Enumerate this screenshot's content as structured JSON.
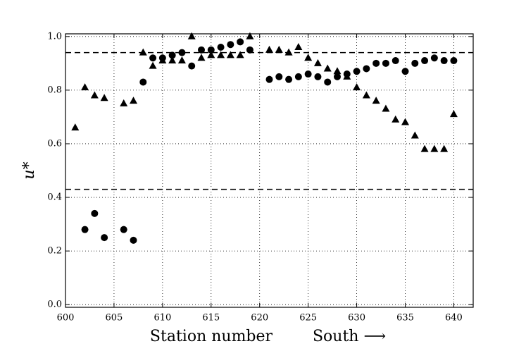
{
  "chart_data": {
    "type": "scatter",
    "xlabel": "Station number",
    "xlabel_note": "South ⟶",
    "ylabel": "u*",
    "xlim": [
      600,
      642
    ],
    "ylim": [
      -0.01,
      1.01
    ],
    "xticks": [
      600,
      605,
      610,
      615,
      620,
      625,
      630,
      635,
      640
    ],
    "yticks": [
      {
        "value": 0,
        "label": "0.0"
      },
      0.2,
      0.4,
      0.6,
      0.8,
      {
        "value": 1,
        "label": "1.0"
      }
    ],
    "grid": true,
    "hlines": [
      0.94,
      0.43
    ],
    "series": [
      {
        "marker": "circle",
        "color": "#000000",
        "x": [
          602,
          603,
          604,
          606,
          607,
          608,
          609,
          610,
          611,
          612,
          613,
          614,
          615,
          616,
          617,
          618,
          619,
          621,
          622,
          623,
          624,
          625,
          626,
          627,
          628,
          629,
          630,
          631,
          632,
          633,
          634,
          635,
          636,
          637,
          638,
          639,
          640
        ],
        "values": [
          0.28,
          0.34,
          0.25,
          0.28,
          0.24,
          0.83,
          0.92,
          0.92,
          0.93,
          0.94,
          0.89,
          0.95,
          0.95,
          0.96,
          0.97,
          0.98,
          0.95,
          0.84,
          0.85,
          0.84,
          0.85,
          0.86,
          0.85,
          0.83,
          0.85,
          0.86,
          0.87,
          0.88,
          0.9,
          0.9,
          0.91,
          0.87,
          0.9,
          0.91,
          0.92,
          0.91,
          0.91
        ]
      },
      {
        "marker": "triangle",
        "color": "#000000",
        "x": [
          601,
          602,
          603,
          604,
          606,
          607,
          608,
          609,
          610,
          611,
          612,
          613,
          614,
          615,
          616,
          617,
          618,
          619,
          621,
          622,
          623,
          624,
          625,
          626,
          627,
          628,
          629,
          630,
          631,
          632,
          633,
          634,
          635,
          636,
          637,
          638,
          639,
          640
        ],
        "values": [
          0.66,
          0.81,
          0.78,
          0.77,
          0.75,
          0.76,
          0.94,
          0.89,
          0.91,
          0.91,
          0.91,
          1.0,
          0.92,
          0.93,
          0.93,
          0.93,
          0.93,
          1.0,
          0.95,
          0.95,
          0.94,
          0.96,
          0.92,
          0.9,
          0.88,
          0.87,
          0.85,
          0.81,
          0.78,
          0.76,
          0.73,
          0.69,
          0.68,
          0.63,
          0.58,
          0.58,
          0.58,
          0.71
        ]
      }
    ]
  }
}
